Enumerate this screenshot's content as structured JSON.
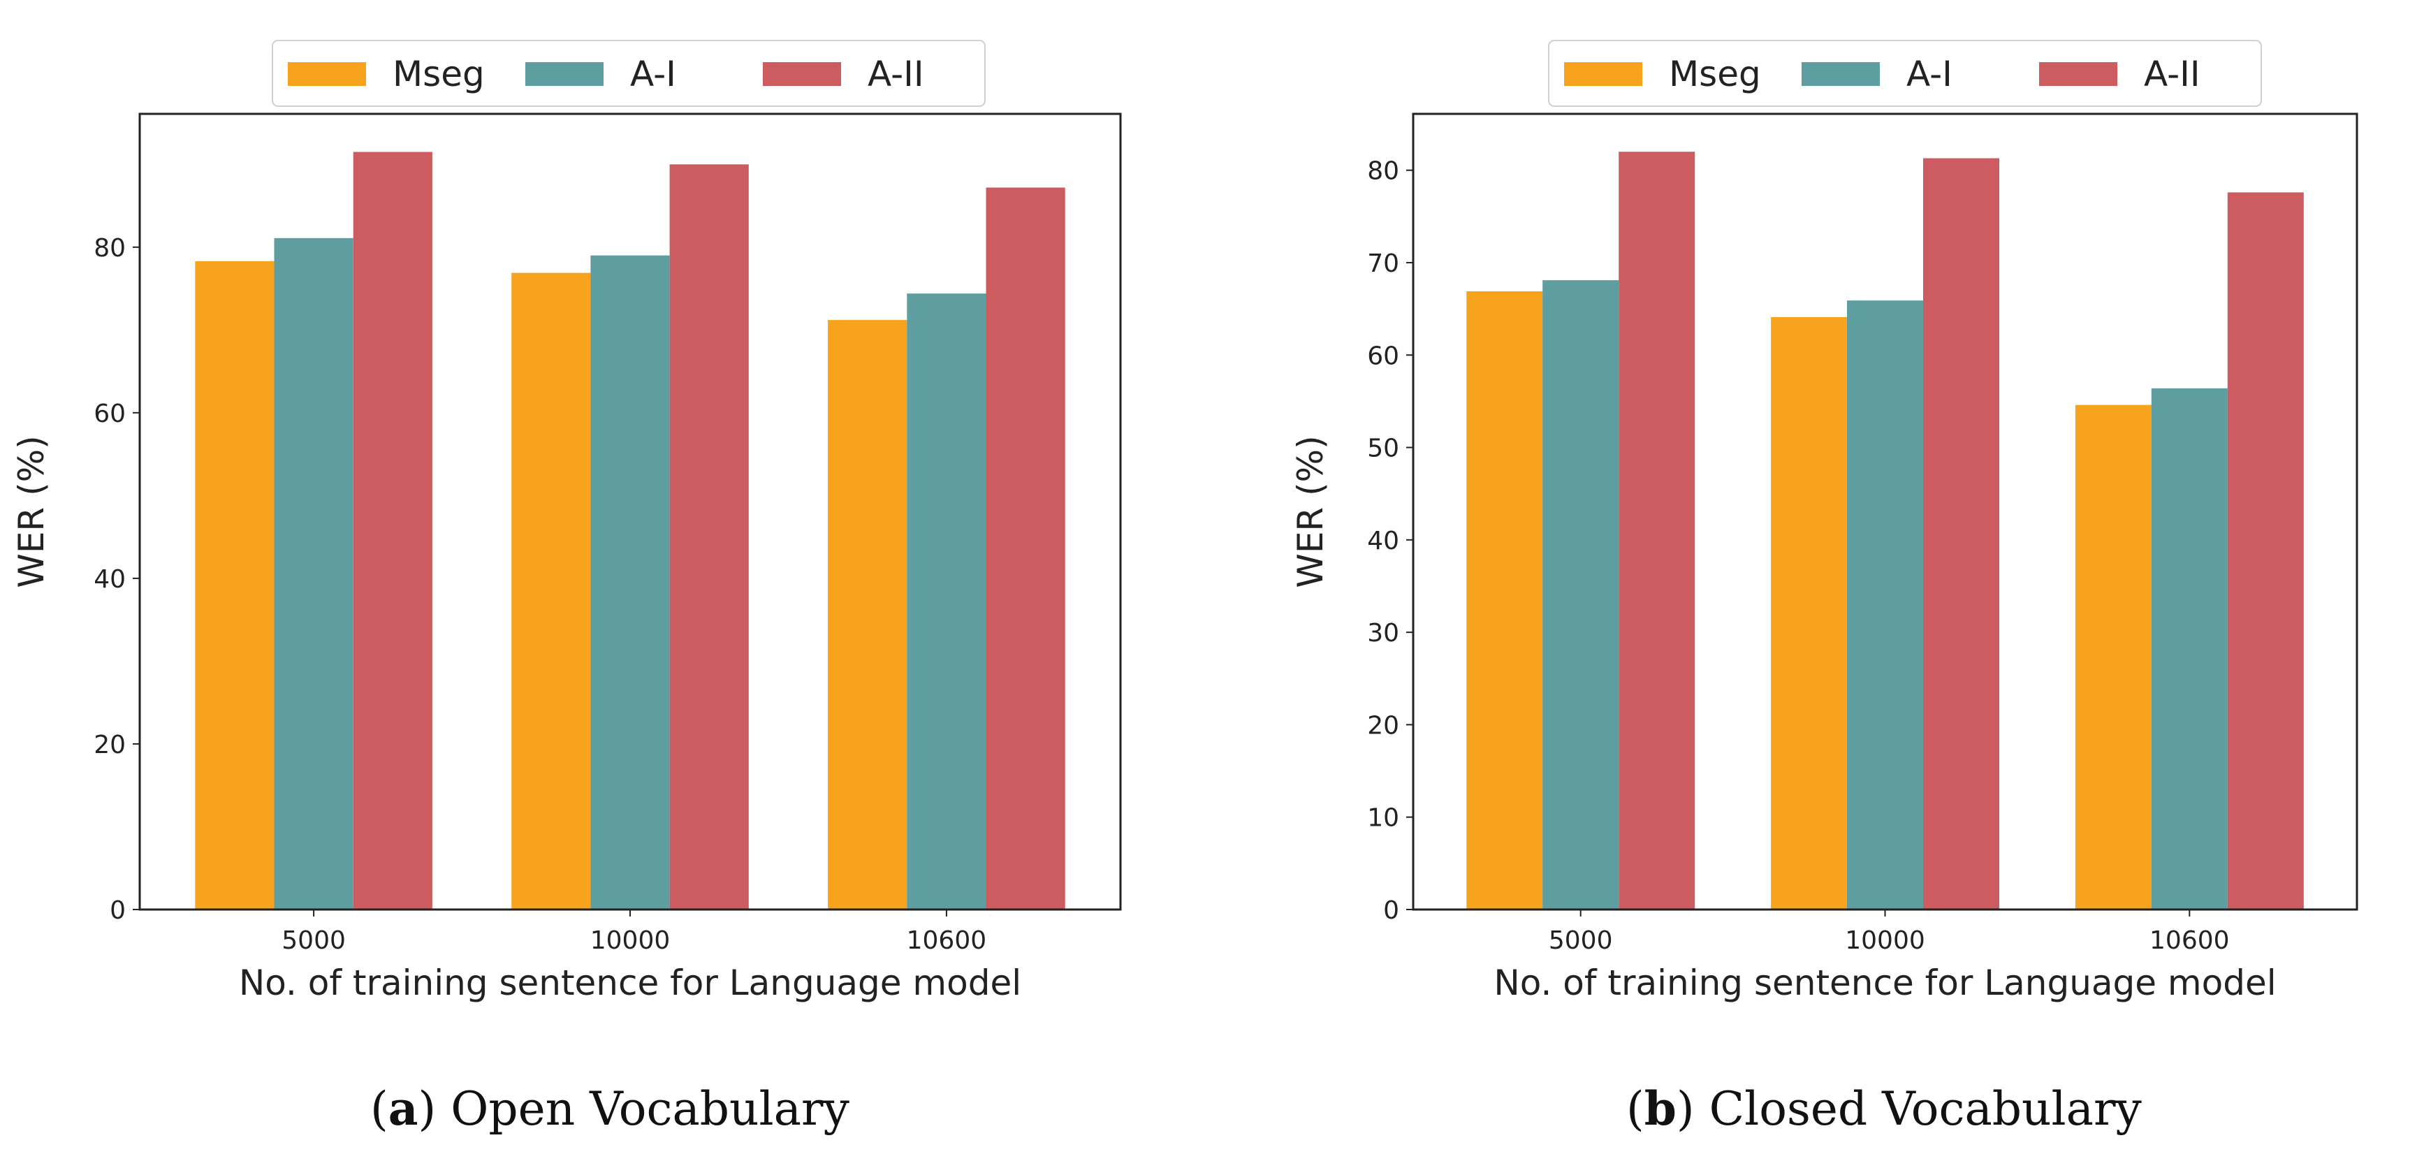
{
  "chart_data": [
    {
      "type": "bar",
      "panel_id": "a",
      "caption_label": "a",
      "caption_text": "Open Vocabulary",
      "categories": [
        "5000",
        "10000",
        "10600"
      ],
      "series": [
        {
          "name": "Mseg",
          "color": "#F8A31E",
          "values": [
            78.3,
            76.9,
            71.2
          ]
        },
        {
          "name": "A-I",
          "color": "#5F9EA0",
          "values": [
            81.1,
            79.0,
            74.4
          ]
        },
        {
          "name": "A-II",
          "color": "#CD5C60",
          "values": [
            91.5,
            90.0,
            87.2
          ]
        }
      ],
      "xlabel": "No. of training sentence for Language model",
      "ylabel": "WER (%)",
      "ylim": [
        0,
        96.1
      ],
      "yticks": [
        0,
        20,
        40,
        60,
        80
      ],
      "legend_position": "top-center",
      "grid": false
    },
    {
      "type": "bar",
      "panel_id": "b",
      "caption_label": "b",
      "caption_text": "Closed Vocabulary",
      "categories": [
        "5000",
        "10000",
        "10600"
      ],
      "series": [
        {
          "name": "Mseg",
          "color": "#F8A31E",
          "values": [
            66.9,
            64.1,
            54.6
          ]
        },
        {
          "name": "A-I",
          "color": "#5F9EA0",
          "values": [
            68.1,
            65.9,
            56.4
          ]
        },
        {
          "name": "A-II",
          "color": "#CD5C60",
          "values": [
            82.0,
            81.3,
            77.6
          ]
        }
      ],
      "xlabel": "No. of training sentence for Language model",
      "ylabel": "WER (%)",
      "ylim": [
        0,
        86.1
      ],
      "yticks": [
        0,
        10,
        20,
        30,
        40,
        50,
        60,
        70,
        80
      ],
      "legend_position": "top-center",
      "grid": false
    }
  ]
}
